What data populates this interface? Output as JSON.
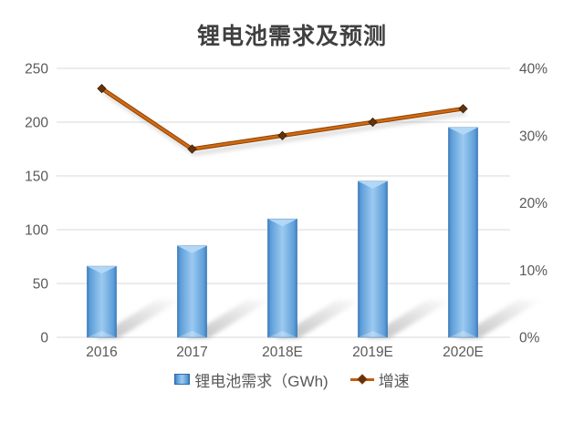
{
  "title": "锂电池需求及预测",
  "legend": {
    "items": [
      {
        "label": "锂电池需求（GWh)"
      },
      {
        "label": "增速"
      }
    ]
  },
  "colors": {
    "background": "#FFFFFF",
    "title_text": "#404040",
    "axis_text": "#595959",
    "grid": "#D9D9D9",
    "bar_fill": "#5B9BD5",
    "bar_edge": "#3B7DC2",
    "bar_highlight": "#B3D9F7",
    "line": "#C55A11",
    "line_dark": "#8A4207",
    "marker": "#66320A",
    "shadow": "#8C8C8C"
  },
  "chart_data": {
    "type": "bar",
    "subtype": "combo bar+line, dual axis, bottom legend, horizontal gridlines",
    "title": "锂电池需求及预测",
    "categories": [
      "2016",
      "2017",
      "2018E",
      "2019E",
      "2020E"
    ],
    "series": [
      {
        "name": "锂电池需求（GWh)",
        "type": "bar",
        "axis": "left",
        "values": [
          66,
          85,
          110,
          145,
          195
        ]
      },
      {
        "name": "增速",
        "type": "line",
        "axis": "right",
        "unit": "percent",
        "values": [
          0.37,
          0.28,
          0.3,
          0.32,
          0.34
        ]
      }
    ],
    "left_axis": {
      "min": 0,
      "max": 250,
      "step": 50,
      "ticks": [
        "0",
        "50",
        "100",
        "150",
        "200",
        "250"
      ]
    },
    "right_axis": {
      "min": "0%",
      "max": "40%",
      "step": "10%",
      "ticks": [
        "0%",
        "10%",
        "20%",
        "30%",
        "40%"
      ]
    }
  }
}
